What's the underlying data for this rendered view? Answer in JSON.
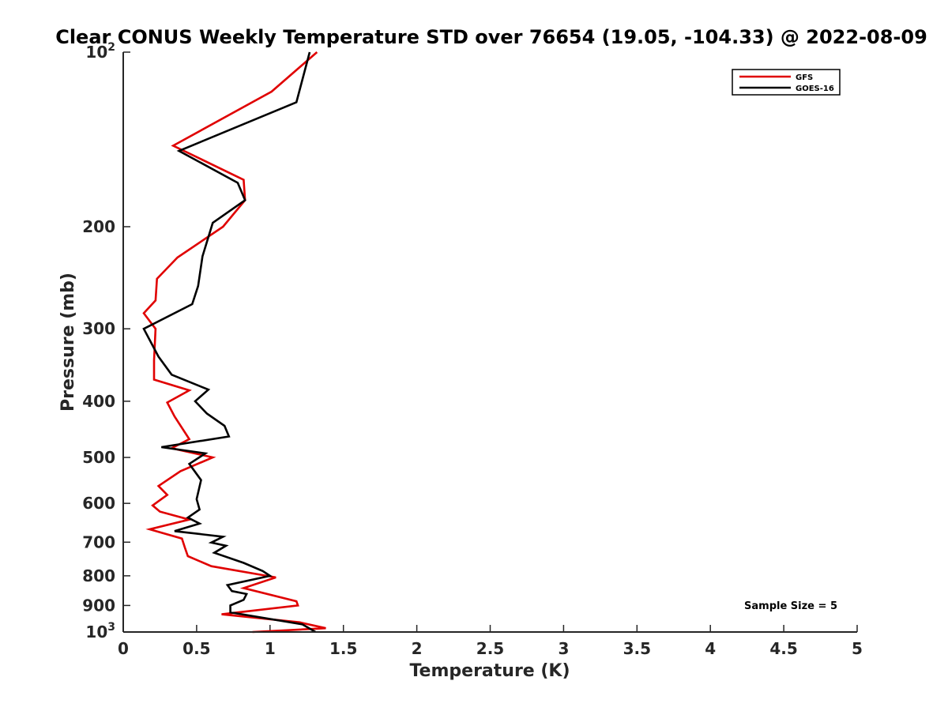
{
  "chart_data": {
    "type": "line",
    "title": "Clear CONUS Weekly Temperature STD over 76654 (19.05, -104.33) @ 2022-08-09",
    "xlabel": "Temperature (K)",
    "ylabel": "Pressure (mb)",
    "xlim": [
      0,
      5
    ],
    "ylim": [
      100,
      1000
    ],
    "y_scale": "log",
    "y_reversed": true,
    "x_ticks": [
      "0",
      "0.5",
      "1",
      "1.5",
      "2",
      "2.5",
      "3",
      "3.5",
      "4",
      "4.5",
      "5"
    ],
    "y_ticks": [
      {
        "value": 100,
        "base": "10",
        "exp": "2"
      },
      {
        "value": 200,
        "label": "200"
      },
      {
        "value": 300,
        "label": "300"
      },
      {
        "value": 400,
        "label": "400"
      },
      {
        "value": 500,
        "label": "500"
      },
      {
        "value": 600,
        "label": "600"
      },
      {
        "value": 700,
        "label": "700"
      },
      {
        "value": 800,
        "label": "800"
      },
      {
        "value": 900,
        "label": "900"
      },
      {
        "value": 1000,
        "base": "10",
        "exp": "3"
      }
    ],
    "grid": false,
    "legend_position": "top-right",
    "annotation": "Sample Size = 5",
    "series": [
      {
        "name": "GFS",
        "color": "#e00000",
        "points": [
          [
            1.32,
            100
          ],
          [
            1.01,
            117
          ],
          [
            0.34,
            145
          ],
          [
            0.82,
            166
          ],
          [
            0.83,
            180
          ],
          [
            0.68,
            200
          ],
          [
            0.37,
            226
          ],
          [
            0.23,
            246
          ],
          [
            0.22,
            268
          ],
          [
            0.14,
            282
          ],
          [
            0.22,
            300
          ],
          [
            0.21,
            340
          ],
          [
            0.21,
            367
          ],
          [
            0.45,
            383
          ],
          [
            0.3,
            402
          ],
          [
            0.35,
            425
          ],
          [
            0.45,
            465
          ],
          [
            0.33,
            482
          ],
          [
            0.61,
            500
          ],
          [
            0.39,
            528
          ],
          [
            0.24,
            560
          ],
          [
            0.3,
            580
          ],
          [
            0.2,
            605
          ],
          [
            0.25,
            620
          ],
          [
            0.45,
            640
          ],
          [
            0.18,
            665
          ],
          [
            0.4,
            690
          ],
          [
            0.42,
            715
          ],
          [
            0.44,
            740
          ],
          [
            0.6,
            770
          ],
          [
            1.04,
            805
          ],
          [
            0.82,
            840
          ],
          [
            1.18,
            885
          ],
          [
            1.19,
            900
          ],
          [
            0.67,
            932
          ],
          [
            1.2,
            962
          ],
          [
            1.38,
            985
          ],
          [
            0.88,
            1000
          ]
        ]
      },
      {
        "name": "GOES-16",
        "color": "#000000",
        "points": [
          [
            1.27,
            100
          ],
          [
            1.18,
            122
          ],
          [
            0.38,
            148
          ],
          [
            0.78,
            168
          ],
          [
            0.83,
            180
          ],
          [
            0.61,
            197
          ],
          [
            0.54,
            225
          ],
          [
            0.51,
            253
          ],
          [
            0.47,
            272
          ],
          [
            0.14,
            300
          ],
          [
            0.24,
            335
          ],
          [
            0.33,
            360
          ],
          [
            0.58,
            382
          ],
          [
            0.49,
            400
          ],
          [
            0.57,
            420
          ],
          [
            0.69,
            441
          ],
          [
            0.72,
            460
          ],
          [
            0.26,
            480
          ],
          [
            0.56,
            492
          ],
          [
            0.45,
            513
          ],
          [
            0.53,
            547
          ],
          [
            0.5,
            590
          ],
          [
            0.52,
            615
          ],
          [
            0.44,
            635
          ],
          [
            0.52,
            650
          ],
          [
            0.35,
            670
          ],
          [
            0.68,
            685
          ],
          [
            0.6,
            701
          ],
          [
            0.7,
            710
          ],
          [
            0.62,
            730
          ],
          [
            0.82,
            760
          ],
          [
            0.95,
            785
          ],
          [
            1.0,
            800
          ],
          [
            0.71,
            830
          ],
          [
            0.74,
            850
          ],
          [
            0.84,
            860
          ],
          [
            0.82,
            880
          ],
          [
            0.73,
            900
          ],
          [
            0.73,
            925
          ],
          [
            1.22,
            970
          ],
          [
            1.31,
            1000
          ]
        ]
      }
    ]
  }
}
